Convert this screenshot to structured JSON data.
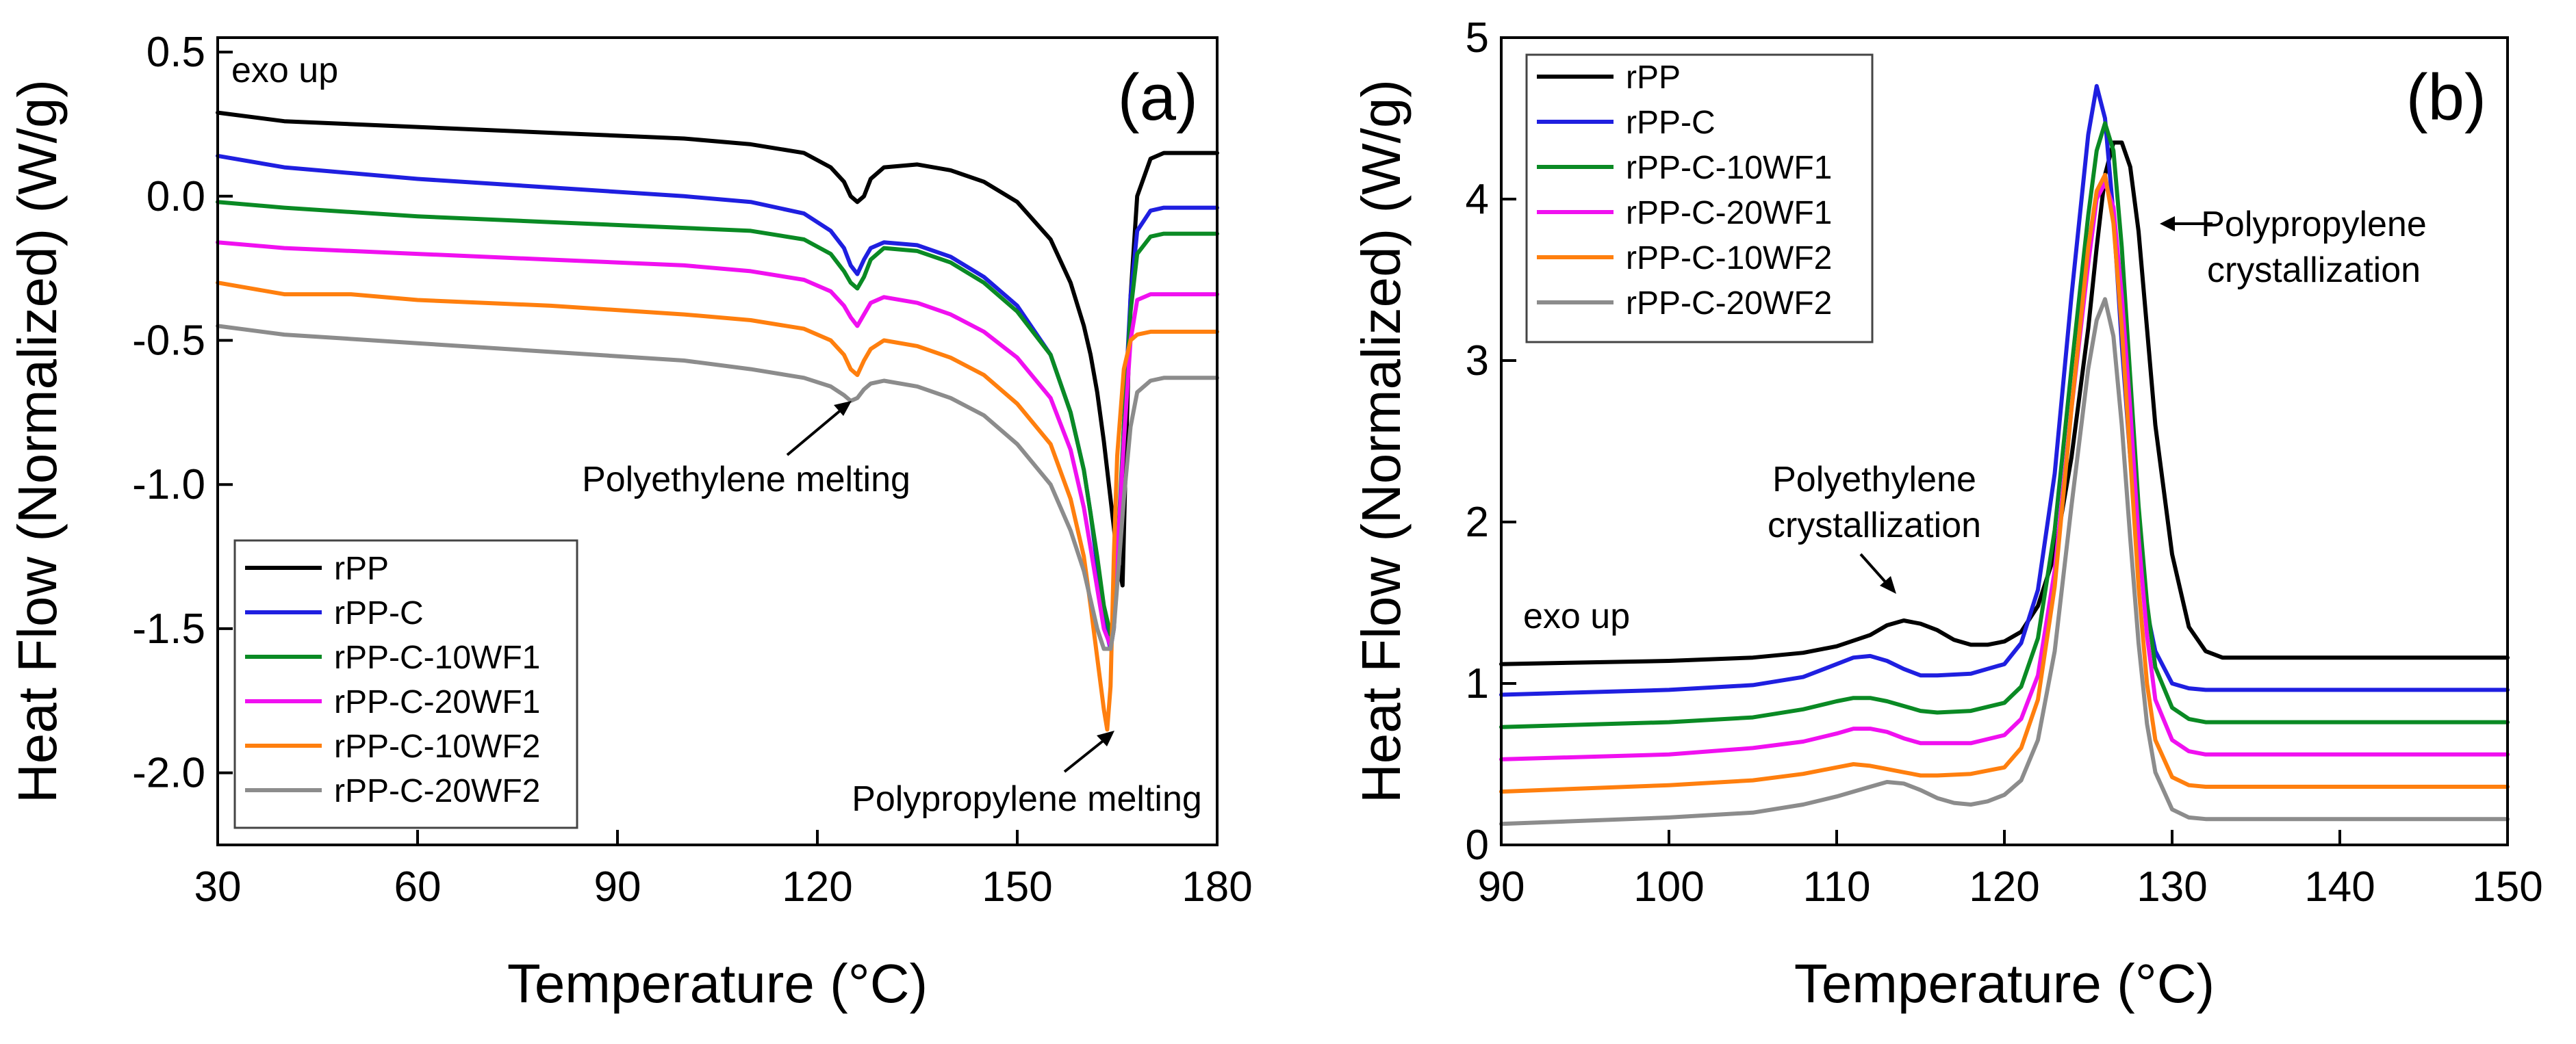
{
  "chart_data": [
    {
      "panel": "(a)",
      "type": "line",
      "title": "",
      "xlabel": "Temperature (°C)",
      "ylabel": "Heat Flow (Normalized) (W/g)",
      "xlim": [
        30,
        180
      ],
      "ylim": [
        -2.25,
        0.55
      ],
      "xticks": [
        30,
        60,
        90,
        120,
        150,
        180
      ],
      "yticks": [
        -2.0,
        -1.5,
        -1.0,
        -0.5,
        0.0,
        0.5
      ],
      "tick_labels_y": [
        "-2.0",
        "-1.5",
        "-1.0",
        "-0.5",
        "0.0",
        "0.5"
      ],
      "corner_note": "exo up",
      "legend_position": "bottom-left",
      "annotations": [
        {
          "text": "Polyethylene melting",
          "x": 112,
          "y": -0.97,
          "target": [
            124.5,
            -0.72
          ]
        },
        {
          "text": "Polypropylene melting",
          "x": 147,
          "y": -2.12,
          "target": [
            161,
            -1.92
          ]
        }
      ],
      "series": [
        {
          "name": "rPP",
          "color": "#000000",
          "x": [
            30,
            40,
            60,
            80,
            100,
            110,
            118,
            122,
            124,
            125,
            126,
            127,
            128,
            130,
            135,
            140,
            145,
            150,
            155,
            158,
            160,
            161,
            162,
            163,
            164,
            165,
            165.8,
            166.3,
            167,
            168,
            170,
            172,
            175,
            180
          ],
          "y": [
            0.29,
            0.26,
            0.24,
            0.22,
            0.2,
            0.18,
            0.15,
            0.1,
            0.05,
            0.0,
            -0.02,
            0.0,
            0.06,
            0.1,
            0.11,
            0.09,
            0.05,
            -0.02,
            -0.15,
            -0.3,
            -0.45,
            -0.55,
            -0.68,
            -0.85,
            -1.05,
            -1.25,
            -1.35,
            -0.9,
            -0.35,
            0.0,
            0.13,
            0.15,
            0.15,
            0.15
          ]
        },
        {
          "name": "rPP-C",
          "color": "#1f1fe0",
          "x": [
            30,
            40,
            60,
            80,
            100,
            110,
            118,
            122,
            124,
            125,
            126,
            127,
            128,
            130,
            135,
            140,
            145,
            150,
            155,
            158,
            160,
            161,
            162,
            163,
            164,
            164.5,
            165,
            166,
            167,
            168,
            170,
            172,
            175,
            180
          ],
          "y": [
            0.14,
            0.1,
            0.06,
            0.03,
            0.0,
            -0.02,
            -0.06,
            -0.12,
            -0.18,
            -0.24,
            -0.27,
            -0.22,
            -0.18,
            -0.16,
            -0.17,
            -0.21,
            -0.28,
            -0.38,
            -0.55,
            -0.75,
            -0.95,
            -1.1,
            -1.28,
            -1.48,
            -1.57,
            -1.5,
            -1.3,
            -0.8,
            -0.35,
            -0.12,
            -0.05,
            -0.04,
            -0.04,
            -0.04
          ]
        },
        {
          "name": "rPP-C-10WF1",
          "color": "#0a8a24",
          "x": [
            30,
            40,
            60,
            80,
            100,
            110,
            118,
            122,
            124,
            125,
            126,
            127,
            128,
            130,
            135,
            140,
            145,
            150,
            155,
            158,
            160,
            161,
            162,
            163,
            164,
            164.5,
            165,
            166,
            167,
            168,
            170,
            172,
            175,
            180
          ],
          "y": [
            -0.02,
            -0.04,
            -0.07,
            -0.09,
            -0.11,
            -0.12,
            -0.15,
            -0.2,
            -0.26,
            -0.3,
            -0.32,
            -0.28,
            -0.22,
            -0.18,
            -0.19,
            -0.23,
            -0.3,
            -0.4,
            -0.55,
            -0.75,
            -0.95,
            -1.1,
            -1.25,
            -1.42,
            -1.52,
            -1.45,
            -1.25,
            -0.8,
            -0.4,
            -0.2,
            -0.14,
            -0.13,
            -0.13,
            -0.13
          ]
        },
        {
          "name": "rPP-C-20WF1",
          "color": "#f010f0",
          "x": [
            30,
            40,
            60,
            80,
            100,
            110,
            118,
            122,
            124,
            125,
            126,
            127,
            128,
            130,
            135,
            140,
            145,
            150,
            155,
            158,
            160,
            161,
            162,
            163,
            164,
            164.5,
            165,
            166,
            167,
            168,
            170,
            172,
            175,
            180
          ],
          "y": [
            -0.16,
            -0.18,
            -0.2,
            -0.22,
            -0.24,
            -0.26,
            -0.29,
            -0.33,
            -0.38,
            -0.42,
            -0.45,
            -0.41,
            -0.37,
            -0.35,
            -0.37,
            -0.41,
            -0.47,
            -0.56,
            -0.7,
            -0.88,
            -1.08,
            -1.22,
            -1.36,
            -1.5,
            -1.56,
            -1.48,
            -1.25,
            -0.85,
            -0.5,
            -0.36,
            -0.34,
            -0.34,
            -0.34,
            -0.34
          ]
        },
        {
          "name": "rPP-C-10WF2",
          "color": "#ff7f0e",
          "x": [
            30,
            40,
            50,
            60,
            80,
            100,
            110,
            118,
            122,
            124,
            125,
            126,
            127,
            128,
            130,
            135,
            140,
            145,
            150,
            155,
            158,
            160,
            161,
            162,
            163,
            163.5,
            164,
            164.5,
            165,
            166,
            167,
            168,
            170,
            172,
            175,
            180
          ],
          "y": [
            -0.3,
            -0.34,
            -0.34,
            -0.36,
            -0.38,
            -0.41,
            -0.43,
            -0.46,
            -0.5,
            -0.55,
            -0.6,
            -0.62,
            -0.57,
            -0.53,
            -0.5,
            -0.52,
            -0.56,
            -0.62,
            -0.72,
            -0.86,
            -1.05,
            -1.25,
            -1.42,
            -1.6,
            -1.78,
            -1.85,
            -1.7,
            -1.25,
            -0.9,
            -0.6,
            -0.5,
            -0.48,
            -0.47,
            -0.47,
            -0.47,
            -0.47
          ]
        },
        {
          "name": "rPP-C-20WF2",
          "color": "#8c8c8c",
          "x": [
            30,
            40,
            60,
            80,
            100,
            110,
            118,
            122,
            124,
            125,
            126,
            127,
            128,
            130,
            135,
            140,
            145,
            150,
            155,
            158,
            160,
            161,
            162,
            163,
            164,
            164.5,
            165,
            166,
            167,
            168,
            170,
            172,
            175,
            180
          ],
          "y": [
            -0.45,
            -0.48,
            -0.51,
            -0.54,
            -0.57,
            -0.6,
            -0.63,
            -0.66,
            -0.69,
            -0.71,
            -0.7,
            -0.67,
            -0.65,
            -0.64,
            -0.66,
            -0.7,
            -0.76,
            -0.86,
            -1.0,
            -1.16,
            -1.3,
            -1.4,
            -1.5,
            -1.57,
            -1.57,
            -1.5,
            -1.35,
            -1.05,
            -0.8,
            -0.68,
            -0.64,
            -0.63,
            -0.63,
            -0.63
          ]
        }
      ]
    },
    {
      "panel": "(b)",
      "type": "line",
      "title": "",
      "xlabel": "Temperature (°C)",
      "ylabel": "Heat Flow (Normalized) (W/g)",
      "xlim": [
        90,
        150
      ],
      "ylim": [
        0,
        5
      ],
      "xticks": [
        90,
        100,
        110,
        120,
        130,
        140,
        150
      ],
      "yticks": [
        0,
        1,
        2,
        3,
        4,
        5
      ],
      "tick_labels_y": [
        "0",
        "1",
        "2",
        "3",
        "4",
        "5"
      ],
      "corner_note": "exo up",
      "legend_position": "top-left",
      "annotations": [
        {
          "text_lines": [
            "Polyethylene",
            "crystallization"
          ],
          "x": 112.5,
          "y": 2.1,
          "target": [
            113.3,
            1.45
          ]
        },
        {
          "text_lines": [
            "Polypropylene",
            "crystallization"
          ],
          "x": 133.5,
          "y": 3.8,
          "target": [
            127.8,
            3.8
          ]
        }
      ],
      "series": [
        {
          "name": "rPP",
          "color": "#000000",
          "x": [
            90,
            100,
            105,
            108,
            110,
            112,
            113,
            114,
            115,
            116,
            117,
            118,
            119,
            120,
            121,
            122,
            123,
            124,
            125,
            125.5,
            126,
            126.5,
            127,
            127.5,
            128,
            128.5,
            129,
            130,
            131,
            132,
            133,
            135,
            140,
            150
          ],
          "y": [
            1.12,
            1.14,
            1.16,
            1.19,
            1.23,
            1.3,
            1.36,
            1.39,
            1.37,
            1.33,
            1.27,
            1.24,
            1.24,
            1.26,
            1.32,
            1.48,
            1.8,
            2.4,
            3.2,
            3.7,
            4.15,
            4.35,
            4.35,
            4.2,
            3.8,
            3.2,
            2.6,
            1.8,
            1.35,
            1.2,
            1.16,
            1.16,
            1.16,
            1.16
          ]
        },
        {
          "name": "rPP-C",
          "color": "#1f1fe0",
          "x": [
            90,
            100,
            105,
            108,
            110,
            111,
            112,
            113,
            114,
            115,
            116,
            118,
            120,
            121,
            122,
            123,
            124,
            125,
            125.5,
            126,
            126.5,
            127,
            127.5,
            128,
            128.5,
            129,
            130,
            131,
            132,
            135,
            150
          ],
          "y": [
            0.93,
            0.96,
            0.99,
            1.04,
            1.12,
            1.16,
            1.17,
            1.14,
            1.09,
            1.05,
            1.05,
            1.06,
            1.12,
            1.25,
            1.58,
            2.3,
            3.4,
            4.4,
            4.7,
            4.5,
            3.9,
            3.1,
            2.4,
            1.85,
            1.45,
            1.2,
            1.0,
            0.97,
            0.96,
            0.96,
            0.96
          ]
        },
        {
          "name": "rPP-C-10WF1",
          "color": "#0a8a24",
          "x": [
            90,
            100,
            105,
            108,
            110,
            111,
            112,
            113,
            114,
            115,
            116,
            118,
            120,
            121,
            122,
            123,
            124,
            125,
            125.5,
            126,
            126.5,
            127,
            127.5,
            128,
            128.5,
            129,
            130,
            131,
            132,
            135,
            150
          ],
          "y": [
            0.73,
            0.76,
            0.79,
            0.84,
            0.89,
            0.91,
            0.91,
            0.89,
            0.86,
            0.83,
            0.82,
            0.83,
            0.88,
            0.98,
            1.28,
            1.95,
            2.95,
            3.9,
            4.3,
            4.47,
            4.3,
            3.7,
            2.9,
            2.1,
            1.5,
            1.1,
            0.85,
            0.78,
            0.76,
            0.76,
            0.76
          ]
        },
        {
          "name": "rPP-C-20WF1",
          "color": "#f010f0",
          "x": [
            90,
            100,
            105,
            108,
            110,
            111,
            112,
            113,
            114,
            115,
            116,
            118,
            120,
            121,
            122,
            123,
            124,
            125,
            125.5,
            126,
            126.5,
            127,
            127.5,
            128,
            128.5,
            129,
            130,
            131,
            132,
            135,
            150
          ],
          "y": [
            0.53,
            0.56,
            0.6,
            0.64,
            0.69,
            0.72,
            0.72,
            0.7,
            0.66,
            0.63,
            0.63,
            0.63,
            0.68,
            0.78,
            1.05,
            1.7,
            2.7,
            3.6,
            4.0,
            4.1,
            3.95,
            3.4,
            2.7,
            1.9,
            1.3,
            0.9,
            0.65,
            0.58,
            0.56,
            0.56,
            0.56
          ]
        },
        {
          "name": "rPP-C-10WF2",
          "color": "#ff7f0e",
          "x": [
            90,
            100,
            105,
            108,
            110,
            111,
            112,
            113,
            114,
            115,
            116,
            118,
            120,
            121,
            122,
            123,
            124,
            125,
            125.5,
            126,
            126.5,
            127,
            127.5,
            128,
            128.5,
            129,
            130,
            131,
            132,
            135,
            150
          ],
          "y": [
            0.33,
            0.37,
            0.4,
            0.44,
            0.48,
            0.5,
            0.49,
            0.47,
            0.45,
            0.43,
            0.43,
            0.44,
            0.48,
            0.6,
            0.9,
            1.6,
            2.7,
            3.7,
            4.05,
            4.15,
            3.85,
            3.2,
            2.4,
            1.6,
            1.0,
            0.65,
            0.42,
            0.37,
            0.36,
            0.36,
            0.36
          ]
        },
        {
          "name": "rPP-C-20WF2",
          "color": "#8c8c8c",
          "x": [
            90,
            100,
            105,
            108,
            110,
            112,
            113,
            114,
            115,
            116,
            117,
            118,
            119,
            120,
            121,
            122,
            123,
            124,
            125,
            125.5,
            126,
            126.5,
            127,
            127.5,
            128,
            128.5,
            129,
            130,
            131,
            132,
            135,
            150
          ],
          "y": [
            0.13,
            0.17,
            0.2,
            0.25,
            0.3,
            0.36,
            0.39,
            0.38,
            0.34,
            0.29,
            0.26,
            0.25,
            0.27,
            0.31,
            0.4,
            0.65,
            1.2,
            2.1,
            2.95,
            3.25,
            3.38,
            3.15,
            2.6,
            1.9,
            1.25,
            0.75,
            0.45,
            0.22,
            0.17,
            0.16,
            0.16,
            0.16
          ]
        }
      ]
    }
  ]
}
